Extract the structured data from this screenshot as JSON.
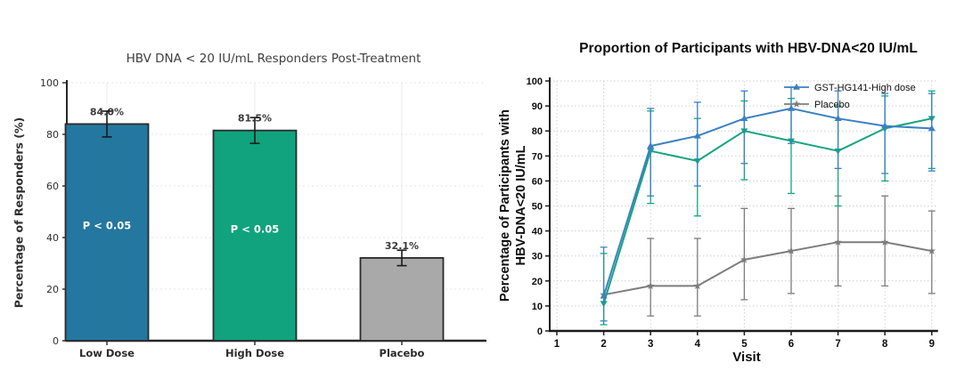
{
  "page": {
    "background_color": "#ffffff"
  },
  "chart_data": [
    {
      "type": "bar",
      "title": "HBV DNA < 20 IU/mL Responders Post-Treatment",
      "ylabel": "Percentage of Responders (%)",
      "ylim": [
        0,
        100
      ],
      "yticks": [
        0,
        20,
        40,
        60,
        80,
        100
      ],
      "categories": [
        "Low Dose",
        "High Dose",
        "Placebo"
      ],
      "values": [
        84.0,
        81.5,
        32.1
      ],
      "value_labels": [
        "84.0%",
        "81.5%",
        "32.1%"
      ],
      "error_minus": [
        5,
        5,
        3
      ],
      "error_plus": [
        5,
        5,
        3
      ],
      "bar_annotations": [
        "P < 0.05",
        "P < 0.05",
        ""
      ],
      "bar_colors": [
        "#24779f",
        "#10a37d",
        "#a9a9a9"
      ],
      "bar_edge_color": "#2b2b2b",
      "grid": true,
      "legend_position": "none"
    },
    {
      "type": "line",
      "title": "Proportion of Participants with HBV-DNA<20 IU/mL",
      "xlabel": "Visit",
      "ylabel": "Percentage of Participants with\nHBV-DNA<20 IU/mL",
      "xlim": [
        1,
        9
      ],
      "ylim": [
        0,
        100
      ],
      "xticks": [
        1,
        2,
        3,
        4,
        5,
        6,
        7,
        8,
        9
      ],
      "yticks": [
        0,
        10,
        20,
        30,
        40,
        50,
        60,
        70,
        80,
        90,
        100
      ],
      "grid": true,
      "legend_position": "top-right",
      "x": [
        2,
        3,
        4,
        5,
        6,
        7,
        8,
        9
      ],
      "series": [
        {
          "name": "GST-HG141-High dose",
          "legend_label": "GST-HG141-High dose",
          "color": "#3c80c2",
          "marker": "triangle-up",
          "values": [
            14,
            74,
            78,
            85,
            89,
            85,
            82,
            81
          ],
          "err_low": [
            4,
            54,
            58,
            67,
            75,
            65,
            63,
            64
          ],
          "err_high": [
            33.5,
            89,
            91.5,
            96,
            97.5,
            96,
            95,
            95
          ]
        },
        {
          "name": "",
          "legend_label": "",
          "color": "#14a57e",
          "marker": "triangle-down",
          "values": [
            11,
            72,
            68,
            80,
            76,
            72,
            81,
            85
          ],
          "err_low": [
            2.5,
            51,
            46,
            60.5,
            55,
            50,
            60,
            65
          ],
          "err_high": [
            31,
            88,
            85,
            92,
            93,
            90,
            94,
            96
          ]
        },
        {
          "name": "Placebo",
          "legend_label": "Placebo",
          "color": "#7d7d7d",
          "marker": "star",
          "values": [
            14.5,
            18,
            18,
            28.5,
            32,
            35.5,
            35.5,
            32
          ],
          "err_low": [
            null,
            6,
            6,
            12.5,
            15,
            18,
            18,
            15
          ],
          "err_high": [
            null,
            37,
            37,
            49,
            49,
            54,
            54,
            48
          ]
        }
      ]
    }
  ]
}
